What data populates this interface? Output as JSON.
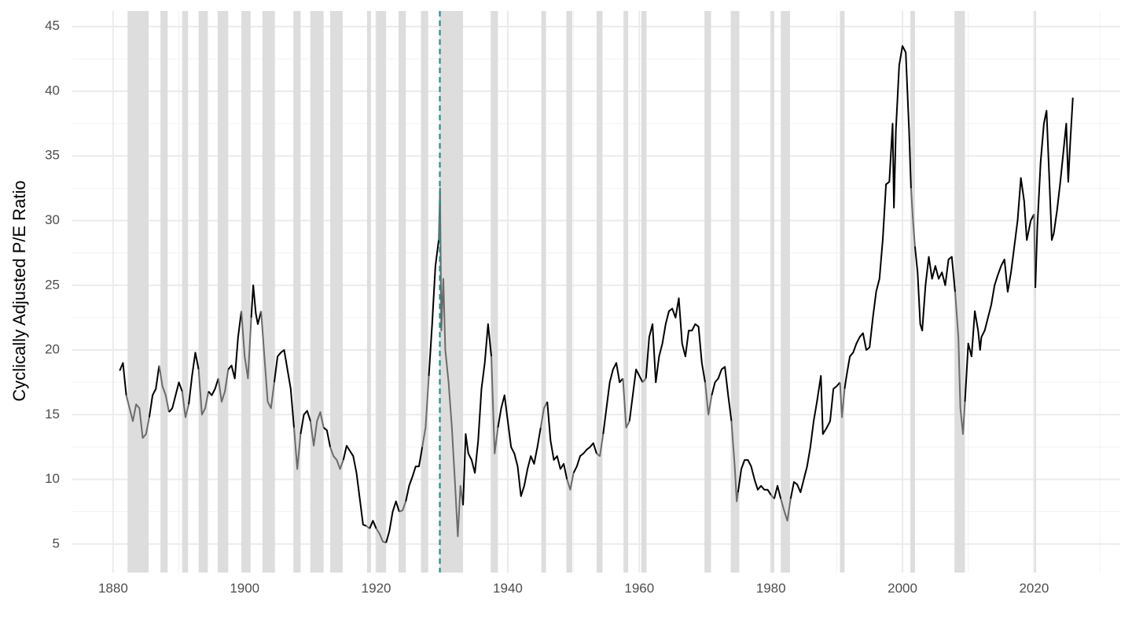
{
  "chart_data": {
    "type": "line",
    "y_label": "Cyclically Adjusted P/E Ratio",
    "x": [
      1881.0,
      1881.5,
      1882.0,
      1882.5,
      1883.0,
      1883.5,
      1884.0,
      1884.5,
      1885.0,
      1885.5,
      1886.0,
      1886.5,
      1887.0,
      1887.5,
      1888.0,
      1888.5,
      1889.0,
      1889.5,
      1890.0,
      1890.5,
      1891.0,
      1891.5,
      1892.0,
      1892.5,
      1893.0,
      1893.5,
      1894.0,
      1894.5,
      1895.0,
      1895.5,
      1896.0,
      1896.5,
      1897.0,
      1897.5,
      1898.0,
      1898.5,
      1899.0,
      1899.5,
      1900.0,
      1900.5,
      1901.0,
      1901.3,
      1901.7,
      1902.0,
      1902.5,
      1903.0,
      1903.5,
      1904.0,
      1904.5,
      1905.0,
      1905.5,
      1906.0,
      1906.5,
      1907.0,
      1907.5,
      1908.0,
      1908.5,
      1909.0,
      1909.5,
      1910.0,
      1910.5,
      1911.0,
      1911.5,
      1912.0,
      1912.5,
      1913.0,
      1913.5,
      1914.0,
      1914.5,
      1915.0,
      1915.5,
      1916.0,
      1916.5,
      1917.0,
      1917.5,
      1918.0,
      1918.5,
      1919.0,
      1919.5,
      1920.0,
      1920.5,
      1921.0,
      1921.5,
      1922.0,
      1922.5,
      1923.0,
      1923.5,
      1924.0,
      1924.5,
      1925.0,
      1925.5,
      1926.0,
      1926.5,
      1927.0,
      1927.5,
      1928.0,
      1928.5,
      1929.0,
      1929.5,
      1929.7,
      1929.9,
      1930.2,
      1930.5,
      1931.0,
      1931.5,
      1932.0,
      1932.4,
      1932.8,
      1933.2,
      1933.6,
      1934.0,
      1934.5,
      1935.0,
      1935.5,
      1936.0,
      1936.5,
      1937.0,
      1937.5,
      1938.0,
      1938.5,
      1939.0,
      1939.5,
      1940.0,
      1940.5,
      1941.0,
      1941.5,
      1942.0,
      1942.5,
      1943.0,
      1943.5,
      1944.0,
      1944.5,
      1945.0,
      1945.5,
      1946.0,
      1946.5,
      1947.0,
      1947.5,
      1948.0,
      1948.5,
      1949.0,
      1949.5,
      1950.0,
      1950.5,
      1951.0,
      1951.5,
      1952.0,
      1952.5,
      1953.0,
      1953.5,
      1954.0,
      1954.5,
      1955.0,
      1955.5,
      1956.0,
      1956.5,
      1957.0,
      1957.5,
      1958.0,
      1958.5,
      1959.0,
      1959.5,
      1960.0,
      1960.5,
      1961.0,
      1961.5,
      1962.0,
      1962.5,
      1963.0,
      1963.5,
      1964.0,
      1964.5,
      1965.0,
      1965.5,
      1966.0,
      1966.5,
      1967.0,
      1967.5,
      1968.0,
      1968.5,
      1969.0,
      1969.5,
      1970.0,
      1970.5,
      1971.0,
      1971.5,
      1972.0,
      1972.5,
      1973.0,
      1973.5,
      1974.0,
      1974.5,
      1974.8,
      1975.0,
      1975.5,
      1976.0,
      1976.5,
      1977.0,
      1977.5,
      1978.0,
      1978.5,
      1979.0,
      1979.5,
      1980.0,
      1980.5,
      1981.0,
      1981.5,
      1982.0,
      1982.5,
      1983.0,
      1983.5,
      1984.0,
      1984.5,
      1985.0,
      1985.5,
      1986.0,
      1986.5,
      1987.0,
      1987.6,
      1987.9,
      1988.5,
      1989.0,
      1989.5,
      1990.0,
      1990.5,
      1990.8,
      1991.2,
      1991.5,
      1992.0,
      1992.5,
      1993.0,
      1993.5,
      1994.0,
      1994.5,
      1995.0,
      1995.5,
      1996.0,
      1996.5,
      1997.0,
      1997.5,
      1998.0,
      1998.5,
      1998.7,
      1999.0,
      1999.5,
      2000.0,
      2000.5,
      2001.0,
      2001.3,
      2001.6,
      2001.9,
      2002.3,
      2002.7,
      2003.0,
      2003.5,
      2004.0,
      2004.5,
      2005.0,
      2005.5,
      2006.0,
      2006.5,
      2007.0,
      2007.5,
      2008.0,
      2008.5,
      2008.8,
      2009.2,
      2009.5,
      2010.0,
      2010.5,
      2011.0,
      2011.5,
      2011.8,
      2012.0,
      2012.5,
      2013.0,
      2013.5,
      2014.0,
      2014.5,
      2015.0,
      2015.5,
      2016.0,
      2016.5,
      2017.0,
      2017.5,
      2018.0,
      2018.5,
      2018.9,
      2019.5,
      2020.0,
      2020.2,
      2020.5,
      2021.0,
      2021.5,
      2021.9,
      2022.3,
      2022.7,
      2023.0,
      2023.5,
      2024.0,
      2024.5,
      2024.9,
      2025.2,
      2025.5,
      2025.9
    ],
    "series": [
      {
        "color": "#000000",
        "recession_color": "#6b6b6b",
        "values": [
          18.4,
          19.0,
          16.5,
          15.5,
          14.5,
          15.8,
          15.5,
          13.2,
          13.5,
          14.8,
          16.5,
          17.0,
          18.8,
          17.2,
          16.5,
          15.2,
          15.5,
          16.5,
          17.5,
          16.8,
          14.8,
          15.8,
          18.0,
          19.8,
          18.5,
          15.0,
          15.5,
          16.8,
          16.5,
          17.0,
          17.8,
          16.0,
          16.8,
          18.5,
          18.8,
          17.8,
          21.0,
          23.0,
          19.5,
          17.8,
          22.5,
          25.0,
          22.8,
          22.0,
          23.0,
          19.5,
          16.0,
          15.5,
          17.5,
          19.5,
          19.8,
          20.0,
          18.5,
          17.0,
          14.0,
          10.8,
          13.5,
          15.0,
          15.3,
          14.5,
          12.6,
          14.5,
          15.2,
          14.0,
          13.8,
          12.5,
          11.8,
          11.5,
          10.8,
          11.5,
          12.6,
          12.2,
          11.8,
          10.5,
          8.5,
          6.5,
          6.4,
          6.2,
          6.8,
          6.2,
          5.8,
          5.2,
          5.1,
          6.0,
          7.5,
          8.3,
          7.5,
          7.6,
          8.3,
          9.5,
          10.2,
          11.0,
          11.0,
          12.5,
          14.0,
          18.0,
          22.0,
          26.5,
          28.5,
          32.5,
          21.5,
          25.5,
          20.0,
          17.5,
          14.0,
          9.5,
          5.6,
          9.5,
          8.0,
          13.5,
          12.0,
          11.5,
          10.5,
          13.0,
          17.0,
          19.0,
          22.0,
          19.5,
          12.0,
          14.0,
          15.5,
          16.5,
          14.5,
          12.5,
          12.0,
          11.0,
          8.7,
          9.5,
          10.8,
          11.8,
          11.2,
          12.5,
          14.0,
          15.5,
          16.0,
          13.0,
          11.5,
          11.8,
          10.8,
          11.2,
          10.0,
          9.2,
          10.5,
          11.0,
          11.8,
          12.0,
          12.3,
          12.5,
          12.8,
          12.0,
          11.8,
          13.5,
          15.5,
          17.5,
          18.5,
          19.0,
          17.5,
          17.8,
          14.0,
          14.5,
          16.5,
          18.5,
          18.0,
          17.5,
          17.8,
          21.0,
          22.0,
          17.5,
          19.5,
          20.5,
          22.0,
          23.0,
          23.2,
          22.5,
          24.0,
          20.5,
          19.5,
          21.5,
          21.5,
          22.0,
          21.8,
          19.0,
          17.5,
          15.0,
          16.5,
          17.5,
          17.8,
          18.5,
          18.7,
          16.5,
          14.5,
          11.0,
          8.3,
          9.0,
          10.8,
          11.5,
          11.5,
          11.0,
          10.0,
          9.2,
          9.5,
          9.2,
          9.2,
          8.8,
          8.5,
          9.5,
          8.5,
          7.6,
          6.8,
          8.5,
          9.8,
          9.6,
          9.0,
          10.0,
          11.0,
          12.5,
          14.5,
          16.0,
          18.0,
          13.5,
          14.0,
          14.5,
          17.0,
          17.2,
          17.5,
          14.8,
          17.0,
          18.0,
          19.5,
          19.8,
          20.5,
          21.0,
          21.3,
          20.0,
          20.2,
          22.5,
          24.5,
          25.5,
          28.5,
          32.8,
          33.0,
          37.5,
          31.0,
          37.0,
          42.0,
          43.5,
          43.0,
          37.0,
          32.5,
          30.0,
          28.0,
          26.0,
          22.0,
          21.5,
          25.0,
          27.2,
          25.5,
          26.5,
          25.5,
          26.0,
          25.0,
          27.0,
          27.2,
          24.5,
          21.0,
          15.5,
          13.5,
          16.0,
          20.5,
          19.5,
          23.0,
          21.5,
          20.0,
          21.0,
          21.5,
          22.5,
          23.5,
          25.0,
          25.8,
          26.5,
          27.0,
          24.5,
          26.0,
          28.0,
          30.0,
          33.3,
          31.5,
          28.5,
          30.0,
          30.5,
          24.8,
          29.5,
          34.5,
          37.5,
          38.5,
          33.5,
          28.5,
          29.0,
          30.8,
          33.0,
          35.5,
          37.5,
          33.0,
          36.0,
          39.5
        ]
      }
    ],
    "recessions": [
      [
        1882.2,
        1885.4
      ],
      [
        1887.2,
        1888.3
      ],
      [
        1890.5,
        1891.4
      ],
      [
        1893.0,
        1894.4
      ],
      [
        1895.9,
        1897.5
      ],
      [
        1899.5,
        1900.9
      ],
      [
        1902.7,
        1904.6
      ],
      [
        1907.4,
        1908.5
      ],
      [
        1910.0,
        1912.0
      ],
      [
        1913.0,
        1914.9
      ],
      [
        1918.6,
        1919.2
      ],
      [
        1920.0,
        1921.5
      ],
      [
        1923.4,
        1924.5
      ],
      [
        1926.8,
        1927.9
      ],
      [
        1929.6,
        1933.2
      ],
      [
        1937.4,
        1938.5
      ],
      [
        1945.1,
        1945.8
      ],
      [
        1948.9,
        1949.8
      ],
      [
        1953.5,
        1954.4
      ],
      [
        1957.6,
        1958.3
      ],
      [
        1960.3,
        1961.1
      ],
      [
        1969.9,
        1970.9
      ],
      [
        1973.9,
        1975.2
      ],
      [
        1980.0,
        1980.5
      ],
      [
        1981.5,
        1982.9
      ],
      [
        1990.5,
        1991.2
      ],
      [
        2001.2,
        2001.9
      ],
      [
        2007.9,
        2009.5
      ],
      [
        2020.1,
        2020.3
      ]
    ],
    "recession_fill": "#dddddd",
    "vline": {
      "x": 1929.67,
      "color": "#2a8c8c"
    },
    "xlim": [
      1873.8,
      2033.1
    ],
    "xticks": [
      1880,
      1900,
      1920,
      1940,
      1960,
      1980,
      2000,
      2020
    ],
    "xminor": [
      1890,
      1910,
      1930,
      1950,
      1970,
      1990,
      2010,
      2030
    ],
    "ylim": [
      2.8,
      46.2
    ],
    "yticks": [
      5,
      10,
      15,
      20,
      25,
      30,
      35,
      40,
      45
    ],
    "yminor": [
      7.5,
      12.5,
      17.5,
      22.5,
      27.5,
      32.5,
      37.5,
      42.5
    ],
    "grid": true
  }
}
